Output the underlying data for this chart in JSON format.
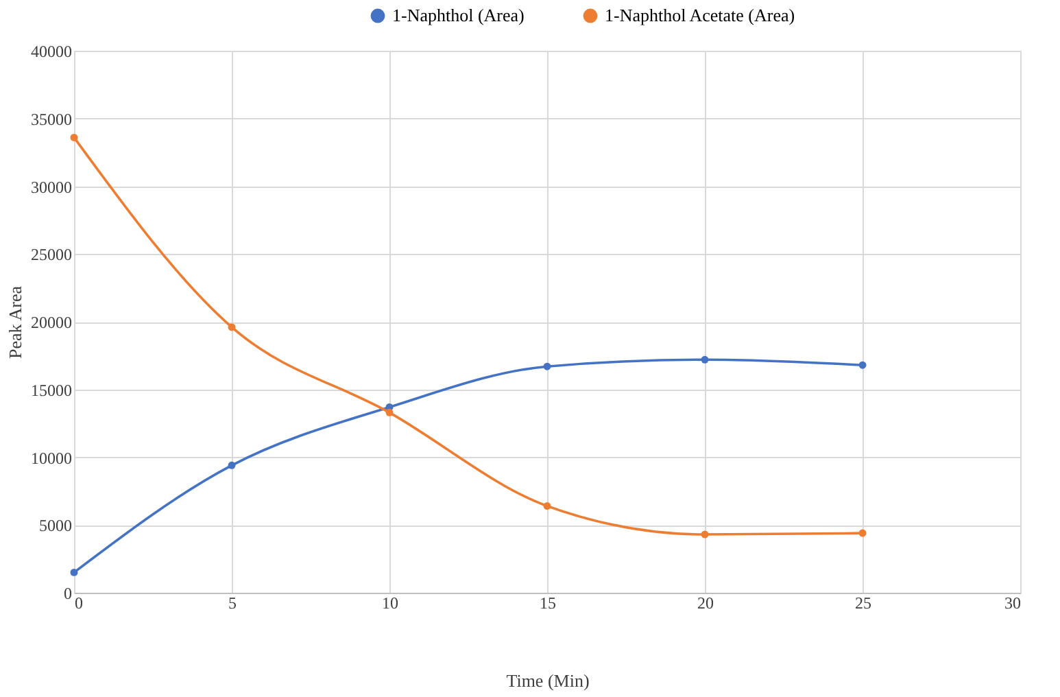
{
  "chart_data": {
    "type": "line",
    "xlabel": "Time (Min)",
    "ylabel": "Peak Area",
    "x": [
      0,
      5,
      10,
      15,
      20,
      25
    ],
    "series": [
      {
        "name": "1-Naphthol (Area)",
        "color": "#4472c4",
        "values": [
          1500,
          9400,
          13700,
          16700,
          17200,
          16800
        ]
      },
      {
        "name": "1-Naphthol Acetate (Area)",
        "color": "#ed7d31",
        "values": [
          33600,
          19600,
          13300,
          6400,
          4300,
          4400
        ]
      }
    ],
    "xlim": [
      0,
      30
    ],
    "xticks": [
      0,
      5,
      10,
      15,
      20,
      25,
      30
    ],
    "ylim": [
      0,
      40000
    ],
    "yticks": [
      0,
      5000,
      10000,
      15000,
      20000,
      25000,
      30000,
      35000,
      40000
    ],
    "grid": true,
    "legend": "top",
    "marker": "circle",
    "line_style": "solid"
  }
}
